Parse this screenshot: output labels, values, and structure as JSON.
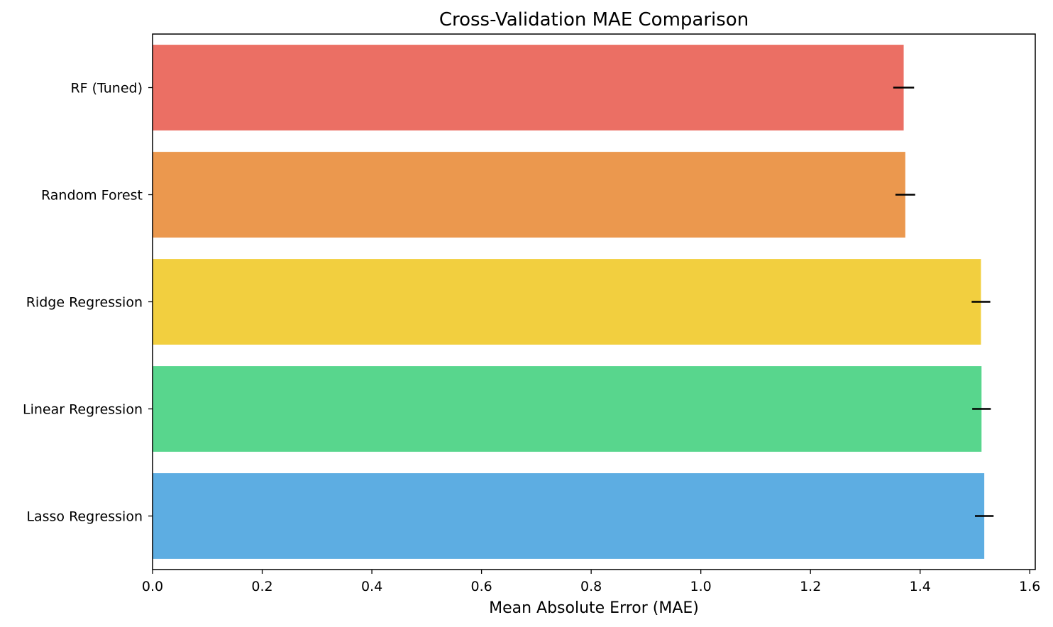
{
  "chart_data": {
    "type": "bar",
    "orientation": "horizontal",
    "title": "Cross-Validation MAE Comparison",
    "xlabel": "Mean Absolute Error (MAE)",
    "ylabel": "",
    "xlim": [
      0,
      1.61
    ],
    "xticks": [
      "0.0",
      "0.2",
      "0.4",
      "0.6",
      "0.8",
      "1.0",
      "1.2",
      "1.4",
      "1.6"
    ],
    "grid": false,
    "legend": "none",
    "categories": [
      "RF (Tuned)",
      "Random Forest",
      "Ridge Regression",
      "Linear Regression",
      "Lasso Regression"
    ],
    "values": [
      1.37,
      1.373,
      1.511,
      1.512,
      1.517
    ],
    "errors": [
      0.019,
      0.018,
      0.017,
      0.017,
      0.017
    ],
    "colors": [
      "#eb6f64",
      "#eb984e",
      "#f2cf3f",
      "#58d68d",
      "#5dade2"
    ]
  }
}
